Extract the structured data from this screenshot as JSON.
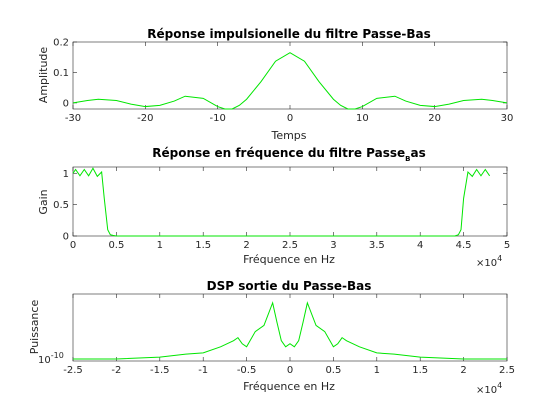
{
  "colors": {
    "series": "#00e600",
    "axes": "#262626",
    "background": "#ffffff"
  },
  "chart_data": [
    {
      "type": "line",
      "title": "Réponse impulsionelle du filtre Passe-Bas",
      "xlabel": "Temps",
      "ylabel": "Amplitude",
      "xlim": [
        -30,
        30
      ],
      "ylim": [
        -0.02,
        0.2
      ],
      "xticks": [
        -30,
        -20,
        -10,
        0,
        10,
        20,
        30
      ],
      "xtick_labels": [
        "-30",
        "-20",
        "-10",
        "0",
        "10",
        "20",
        "30"
      ],
      "yticks": [
        0,
        0.1,
        0.2
      ],
      "ytick_labels": [
        "0",
        "0.1",
        "0.2"
      ],
      "grid": false,
      "series": [
        {
          "x": [
            -30,
            -28,
            -26.5,
            -24,
            -22,
            -20,
            -18,
            -16,
            -14.5,
            -12,
            -10,
            -9,
            -8,
            -7,
            -6,
            -4,
            -2,
            0,
            2,
            4,
            6,
            7,
            8,
            9,
            10,
            12,
            14.5,
            16,
            18,
            20,
            22,
            24,
            26.5,
            28,
            30
          ],
          "values": [
            0.0,
            0.008,
            0.012,
            0.008,
            -0.004,
            -0.012,
            -0.008,
            0.006,
            0.022,
            0.015,
            -0.012,
            -0.02,
            -0.02,
            -0.008,
            0.012,
            0.07,
            0.137,
            0.165,
            0.137,
            0.07,
            0.012,
            -0.008,
            -0.02,
            -0.02,
            -0.012,
            0.015,
            0.022,
            0.006,
            -0.008,
            -0.012,
            -0.004,
            0.008,
            0.012,
            0.008,
            0.0
          ]
        }
      ]
    },
    {
      "type": "line",
      "title_main": "Réponse en fréquence du filtre Passe",
      "title_sub": "B",
      "title_tail": "as",
      "xlabel": "Fréquence en Hz",
      "ylabel": "Gain",
      "xlim": [
        0,
        50000
      ],
      "ylim": [
        0,
        1.1
      ],
      "xticks": [
        0,
        5000,
        10000,
        15000,
        20000,
        25000,
        30000,
        35000,
        40000,
        45000,
        50000
      ],
      "xtick_labels": [
        "0",
        "0.5",
        "1",
        "1.5",
        "2",
        "2.5",
        "3",
        "3.5",
        "4",
        "4.5",
        "5"
      ],
      "yticks": [
        0,
        0.5,
        1
      ],
      "ytick_labels": [
        "0",
        "0.5",
        "1"
      ],
      "x_exponent_base": "×10",
      "x_exponent_power": "4",
      "grid": false,
      "series": [
        {
          "x": [
            0,
            300,
            800,
            1300,
            1800,
            2300,
            2800,
            3300,
            3600,
            4000,
            4300,
            4600,
            5000,
            44000,
            44400,
            44700,
            45000,
            45500,
            46000,
            46500,
            47000,
            47500,
            48000
          ],
          "values": [
            1.0,
            1.06,
            0.96,
            1.06,
            0.96,
            1.08,
            0.95,
            1.02,
            0.6,
            0.1,
            0.02,
            0.01,
            0.0,
            0.0,
            0.02,
            0.1,
            0.6,
            1.02,
            0.95,
            1.06,
            0.96,
            1.06,
            0.96
          ]
        }
      ]
    },
    {
      "type": "line",
      "title": "DSP sortie du Passe-Bas",
      "xlabel": "Fréquence en Hz",
      "ylabel": "Puissance",
      "xlim": [
        -25000,
        25000
      ],
      "y_scale": "log",
      "xticks": [
        -25000,
        -20000,
        -15000,
        -10000,
        -5000,
        0,
        5000,
        10000,
        15000,
        20000,
        25000
      ],
      "xtick_labels": [
        "-2.5",
        "-2",
        "-1.5",
        "-1",
        "-0.5",
        "0",
        "0.5",
        "1",
        "1.5",
        "2",
        "2.5"
      ],
      "ytick_base": "10",
      "ytick_power": "-10",
      "x_exponent_base": "×10",
      "x_exponent_power": "4",
      "grid": false,
      "series": [
        {
          "x": [
            -25000,
            -20000,
            -15000,
            -12000,
            -10000,
            -8000,
            -6500,
            -6000,
            -5500,
            -5000,
            -4000,
            -3000,
            -2000,
            -1500,
            -1000,
            -500,
            0,
            500,
            1000,
            1500,
            2000,
            3000,
            4000,
            5000,
            5500,
            6000,
            6500,
            8000,
            10000,
            12000,
            15000,
            20000,
            25000
          ],
          "values": [
            0.0,
            0.0,
            0.03,
            0.08,
            0.1,
            0.2,
            0.3,
            0.35,
            0.25,
            0.2,
            0.45,
            0.55,
            0.92,
            0.6,
            0.3,
            0.2,
            0.25,
            0.2,
            0.3,
            0.6,
            0.92,
            0.55,
            0.45,
            0.2,
            0.25,
            0.35,
            0.3,
            0.2,
            0.1,
            0.08,
            0.03,
            0.0,
            0.0
          ]
        }
      ]
    }
  ]
}
